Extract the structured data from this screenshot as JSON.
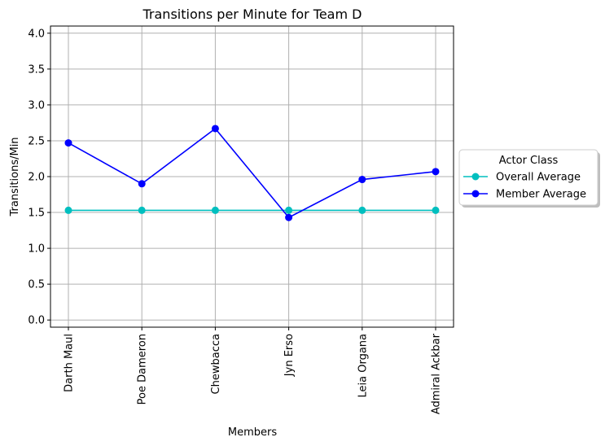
{
  "chart_data": {
    "type": "line",
    "title": "Transitions per Minute for Team D",
    "xlabel": "Members",
    "ylabel": "Transitions/Min",
    "categories": [
      "Darth Maul",
      "Poe Dameron",
      "Chewbacca",
      "Jyn Erso",
      "Leia Organa",
      "Admiral Ackbar"
    ],
    "ylim": [
      -0.1,
      4.1
    ],
    "yticks": [
      "0.0",
      "0.5",
      "1.0",
      "1.5",
      "2.0",
      "2.5",
      "3.0",
      "3.5",
      "4.0"
    ],
    "grid": true,
    "legend": {
      "title": "Actor Class",
      "placement": "center-right outside"
    },
    "series": [
      {
        "name": "Overall Average",
        "color": "#00bfbf",
        "values": [
          1.53,
          1.53,
          1.53,
          1.53,
          1.53,
          1.53
        ]
      },
      {
        "name": "Member Average",
        "color": "#0000ff",
        "values": [
          2.47,
          1.9,
          2.67,
          1.43,
          1.96,
          2.07
        ]
      }
    ]
  }
}
